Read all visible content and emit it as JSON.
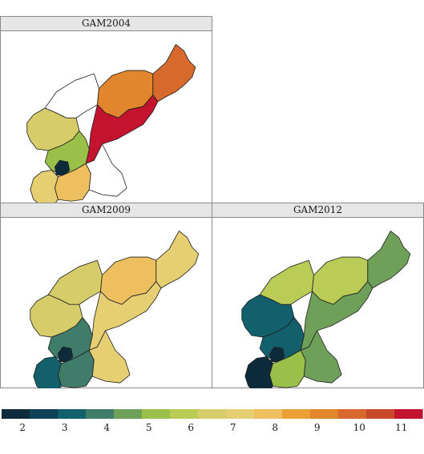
{
  "panels": [
    {
      "title": "GAM2004",
      "regions": {
        "ryanggang": 9,
        "hamgyong_north": 10,
        "hamgyong_south": 11,
        "pyongan_north": 6.5,
        "pyongan_south": 5,
        "pyongyang": 2,
        "hwanghae_south": 7,
        "hwanghae_north": 7.5,
        "kangwon": null,
        "chagang": null
      }
    },
    {
      "title": "GAM2009",
      "regions": {
        "ryanggang": 7.5,
        "hamgyong_north": 7,
        "hamgyong_south": 7,
        "pyongan_north": 6.5,
        "pyongan_south": 4,
        "pyongyang": 2,
        "hwanghae_south": 3,
        "hwanghae_north": 4,
        "kangwon": 7,
        "chagang": 6.5
      }
    },
    {
      "title": "GAM2012",
      "regions": {
        "ryanggang": 6,
        "hamgyong_north": 4.5,
        "hamgyong_south": 4.5,
        "pyongan_north": 3,
        "pyongan_south": 3,
        "pyongyang": 2,
        "hwanghae_south": 2,
        "hwanghae_north": 5,
        "kangwon": 4.5,
        "chagang": 5.5
      }
    }
  ],
  "legend": {
    "colors": [
      "#0d2b3a",
      "#0f4256",
      "#12606c",
      "#3f7c6a",
      "#6ea05a",
      "#9bc04a",
      "#bacb56",
      "#d6cc6a",
      "#e6cf73",
      "#eebf5e",
      "#ec9f34",
      "#e2862e",
      "#d6692b",
      "#c94a2b",
      "#c3132f"
    ],
    "ticks": [
      "2",
      "3",
      "4",
      "5",
      "6",
      "7",
      "8",
      "9",
      "10",
      "11"
    ]
  }
}
